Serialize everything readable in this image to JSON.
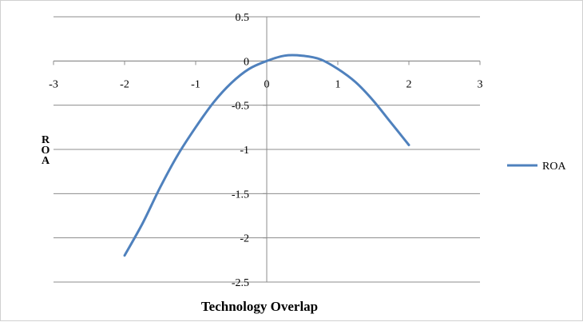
{
  "chart_data": {
    "type": "line",
    "xlabel": "Technology Overlap",
    "ylabel": "ROA",
    "xlim": [
      -3,
      3
    ],
    "ylim": [
      -2.5,
      0.5
    ],
    "x_ticks": [
      "-3",
      "-2",
      "-1",
      "0",
      "1",
      "2",
      "3"
    ],
    "y_ticks": [
      "0.5",
      "0",
      "-0.5",
      "-1",
      "-1.5",
      "-2",
      "-2.5"
    ],
    "grid": true,
    "legend_position": "right",
    "series": [
      {
        "name": "ROA",
        "color": "#4F81BD",
        "x": [
          -2,
          -1.75,
          -1.5,
          -1.25,
          -1,
          -0.75,
          -0.5,
          -0.25,
          0,
          0.25,
          0.5,
          0.75,
          1,
          1.25,
          1.5,
          1.75,
          2
        ],
        "y": [
          -2.2,
          -1.84,
          -1.43,
          -1.06,
          -0.75,
          -0.47,
          -0.25,
          -0.09,
          0.0,
          0.06,
          0.06,
          0.02,
          -0.09,
          -0.24,
          -0.45,
          -0.7,
          -0.95
        ]
      }
    ]
  }
}
